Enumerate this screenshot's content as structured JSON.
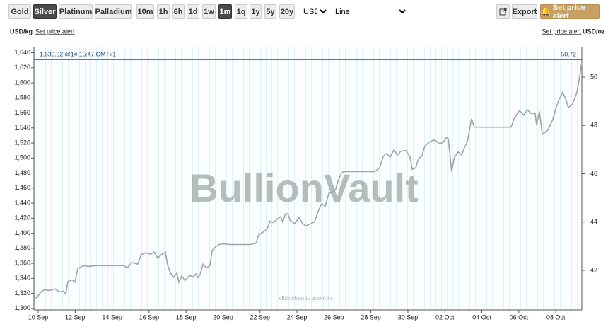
{
  "toolbar": {
    "metals": [
      "Gold",
      "Silver",
      "Platinum",
      "Palladium"
    ],
    "selected_metal": 1,
    "ranges": [
      "10m",
      "1h",
      "6h",
      "1d",
      "1w",
      "1m",
      "1q",
      "1y",
      "5y",
      "20y"
    ],
    "selected_range": 5,
    "currency": "USD",
    "chart_style": "Line",
    "export": "Export",
    "alert": "Set price alert"
  },
  "chart_data": {
    "type": "line",
    "watermark": "BullionVault",
    "hint": "click chart to zoom in",
    "ylabel": "USD/kg",
    "y2label": "USD/oz",
    "left_alert": "Set price alert",
    "right_alert": "Set price alert",
    "current": {
      "value": 1630.82,
      "label": "1,630.82 @14:15:47 GMT+1",
      "oz_label": "50.72",
      "color": "#1f4e79"
    },
    "x": [
      -0.23,
      -0.08,
      0.15,
      0.34,
      0.61,
      0.92,
      1.15,
      1.38,
      1.49,
      1.61,
      1.84,
      1.99,
      2.14,
      2.45,
      2.72,
      3.1,
      3.48,
      4.63,
      4.82,
      5.05,
      5.39,
      5.58,
      5.85,
      6.08,
      6.27,
      6.46,
      6.69,
      6.88,
      7.0,
      7.11,
      7.3,
      7.5,
      7.61,
      7.76,
      7.95,
      8.18,
      8.37,
      8.53,
      8.64,
      8.76,
      8.91,
      9.1,
      9.29,
      9.41,
      9.6,
      9.79,
      10.02,
      10.36,
      11.51,
      11.78,
      11.93,
      12.2,
      12.39,
      12.54,
      12.73,
      12.93,
      13.12,
      13.23,
      13.38,
      13.5,
      13.65,
      13.88,
      14.11,
      14.3,
      14.49,
      14.68,
      14.95,
      15.14,
      15.33,
      15.53,
      15.72,
      15.91,
      16.1,
      16.21,
      16.41,
      16.52,
      18.2,
      18.47,
      18.66,
      18.85,
      19.04,
      19.24,
      19.43,
      19.62,
      19.89,
      20.11,
      20.23,
      20.42,
      20.57,
      20.76,
      20.92,
      21.15,
      21.41,
      21.57,
      21.72,
      21.91,
      22.07,
      22.18,
      22.37,
      22.52,
      22.72,
      22.91,
      23.06,
      23.21,
      23.33,
      23.44,
      23.59,
      25.58,
      25.77,
      26.04,
      26.27,
      26.46,
      26.69,
      26.88,
      26.96,
      27.11,
      27.27,
      27.5,
      27.69,
      27.84,
      27.99,
      28.18,
      28.37,
      28.53,
      28.68,
      28.91,
      29.14,
      29.29,
      29.41
    ],
    "series": [
      {
        "name": "Silver",
        "color": "#a0a4a8",
        "values": [
          1316,
          1314,
          1322,
          1325,
          1324,
          1326,
          1322,
          1323,
          1319,
          1336,
          1338,
          1335,
          1353,
          1357,
          1356,
          1357,
          1357,
          1357,
          1354,
          1361,
          1359,
          1372,
          1374,
          1372,
          1375,
          1367,
          1372,
          1375,
          1358,
          1350,
          1341,
          1347,
          1335,
          1343,
          1337,
          1344,
          1342,
          1346,
          1341,
          1345,
          1359,
          1354,
          1357,
          1377,
          1382,
          1385,
          1386,
          1385,
          1385,
          1387,
          1398,
          1402,
          1406,
          1416,
          1414,
          1419,
          1422,
          1415,
          1426,
          1426,
          1416,
          1413,
          1421,
          1413,
          1410,
          1412,
          1415,
          1429,
          1439,
          1436,
          1453,
          1454,
          1459,
          1469,
          1480,
          1482,
          1482,
          1487,
          1502,
          1506,
          1501,
          1511,
          1504,
          1509,
          1510,
          1502,
          1485,
          1487,
          1499,
          1503,
          1516,
          1521,
          1524,
          1522,
          1519,
          1521,
          1527,
          1526,
          1482,
          1501,
          1508,
          1504,
          1514,
          1521,
          1537,
          1552,
          1541,
          1541,
          1554,
          1563,
          1557,
          1564,
          1559,
          1560,
          1544,
          1562,
          1532,
          1535,
          1543,
          1551,
          1565,
          1578,
          1587,
          1579,
          1567,
          1572,
          1587,
          1608,
          1628
        ]
      }
    ],
    "xlim": [
      -0.23,
      29.41
    ],
    "xticks": [
      {
        "value": 0,
        "label": "10 Sep"
      },
      {
        "value": 2,
        "label": "12 Sep"
      },
      {
        "value": 4,
        "label": "14 Sep"
      },
      {
        "value": 6,
        "label": "16 Sep"
      },
      {
        "value": 8,
        "label": "18 Sep"
      },
      {
        "value": 10,
        "label": "20 Sep"
      },
      {
        "value": 12,
        "label": "22 Sep"
      },
      {
        "value": 14,
        "label": "24 Sep"
      },
      {
        "value": 16,
        "label": "26 Sep"
      },
      {
        "value": 18,
        "label": "28 Sep"
      },
      {
        "value": 20,
        "label": "30 Sep"
      },
      {
        "value": 22,
        "label": "02 Oct"
      },
      {
        "value": 24,
        "label": "04 Oct"
      },
      {
        "value": 26,
        "label": "06 Oct"
      },
      {
        "value": 28,
        "label": "08 Oct"
      }
    ],
    "ylim": [
      1298,
      1648
    ],
    "yticks": [
      {
        "value": 1300,
        "label": "1,300"
      },
      {
        "value": 1320,
        "label": "1,320"
      },
      {
        "value": 1340,
        "label": "1,340"
      },
      {
        "value": 1360,
        "label": "1,360"
      },
      {
        "value": 1380,
        "label": "1,380"
      },
      {
        "value": 1400,
        "label": "1,400"
      },
      {
        "value": 1420,
        "label": "1,420"
      },
      {
        "value": 1440,
        "label": "1,440"
      },
      {
        "value": 1460,
        "label": "1,460"
      },
      {
        "value": 1480,
        "label": "1,480"
      },
      {
        "value": 1500,
        "label": "1,500"
      },
      {
        "value": 1520,
        "label": "1,520"
      },
      {
        "value": 1540,
        "label": "1,540"
      },
      {
        "value": 1560,
        "label": "1,560"
      },
      {
        "value": 1580,
        "label": "1,580"
      },
      {
        "value": 1600,
        "label": "1,600"
      },
      {
        "value": 1620,
        "label": "1,620"
      },
      {
        "value": 1640,
        "label": "1,640"
      }
    ],
    "y2lim": [
      40.36,
      51.26
    ],
    "y2ticks": [
      42,
      44,
      46,
      48,
      50
    ]
  }
}
